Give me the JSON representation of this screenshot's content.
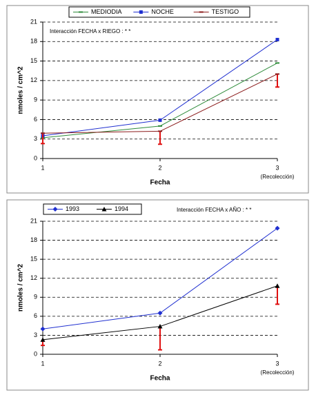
{
  "chart_data": [
    {
      "type": "line",
      "annotation": "Interacción FECHA x RIEGO : * *",
      "xlabel": "Fecha",
      "ylabel": "nmoles / cm^2",
      "x_note": "(Recolección)",
      "x": [
        1,
        2,
        3
      ],
      "xlim": [
        1,
        3
      ],
      "xticks": [
        1,
        2,
        3
      ],
      "ylim": [
        0,
        21
      ],
      "yticks": [
        0,
        3,
        6,
        9,
        12,
        15,
        18,
        21
      ],
      "grid": true,
      "series": [
        {
          "name": "MEDIODIA",
          "color": "#2e8b3a",
          "marker": "dash",
          "values": [
            3.2,
            5.0,
            14.7
          ]
        },
        {
          "name": "NOCHE",
          "color": "#1f2fd0",
          "marker": "square",
          "values": [
            3.5,
            5.9,
            18.3
          ]
        },
        {
          "name": "TESTIGO",
          "color": "#8b1a1a",
          "marker": "dash",
          "values": [
            3.9,
            4.2,
            13.0
          ],
          "errors": [
            1.6,
            2.0,
            2.0
          ],
          "error_color": "#e01010"
        }
      ]
    },
    {
      "type": "line",
      "annotation": "Interacción FECHA x AÑO : * *",
      "xlabel": "Fecha",
      "ylabel": "nmoles / cm^2",
      "x_note": "(Recolección)",
      "x": [
        1,
        2,
        3
      ],
      "xlim": [
        1,
        3
      ],
      "xticks": [
        1,
        2,
        3
      ],
      "ylim": [
        0,
        21
      ],
      "yticks": [
        0,
        3,
        6,
        9,
        12,
        15,
        18,
        21
      ],
      "grid": true,
      "series": [
        {
          "name": "1993",
          "color": "#1f2fd0",
          "marker": "diamond",
          "values": [
            4.0,
            6.5,
            19.9
          ]
        },
        {
          "name": "1994",
          "color": "#000000",
          "marker": "triangle",
          "values": [
            2.3,
            4.4,
            10.8
          ],
          "errors": [
            0.9,
            3.7,
            2.9
          ],
          "error_color": "#e01010"
        }
      ]
    }
  ]
}
